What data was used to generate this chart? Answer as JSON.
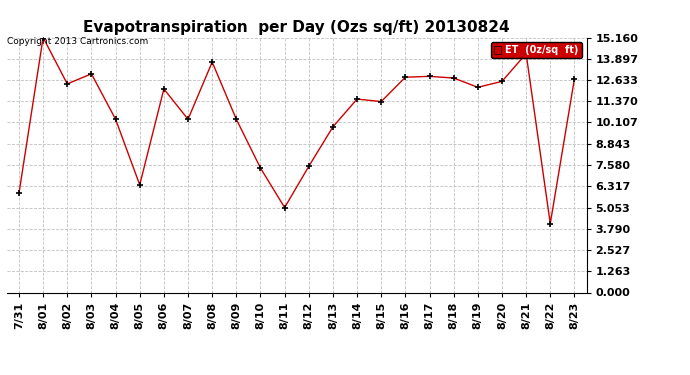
{
  "title": "Evapotranspiration  per Day (Ozs sq/ft) 20130824",
  "x_labels": [
    "7/31",
    "8/01",
    "8/02",
    "8/03",
    "8/04",
    "8/05",
    "8/06",
    "8/07",
    "8/08",
    "8/09",
    "8/10",
    "8/11",
    "8/12",
    "8/13",
    "8/14",
    "8/15",
    "8/16",
    "8/17",
    "8/18",
    "8/19",
    "8/20",
    "8/21",
    "8/22",
    "8/23"
  ],
  "y_values": [
    5.9,
    15.16,
    12.4,
    13.0,
    10.3,
    6.4,
    12.1,
    10.3,
    13.7,
    10.3,
    7.4,
    5.05,
    7.5,
    9.85,
    11.5,
    11.35,
    12.8,
    12.85,
    12.75,
    12.2,
    12.55,
    14.2,
    4.1,
    12.7
  ],
  "line_color": "#cc0000",
  "marker_color": "#000000",
  "marker_style": "+",
  "legend_label": "ET  (0z/sq  ft)",
  "legend_bg": "#cc0000",
  "legend_text_color": "#ffffff",
  "yticks": [
    0.0,
    1.263,
    2.527,
    3.79,
    5.053,
    6.317,
    7.58,
    8.843,
    10.107,
    11.37,
    12.633,
    13.897,
    15.16
  ],
  "ylim": [
    0,
    15.16
  ],
  "copyright_text": "Copyright 2013 Cartronics.com",
  "background_color": "#ffffff",
  "grid_color": "#c0c0c0",
  "title_fontsize": 11,
  "tick_fontsize": 8,
  "ytick_fontsize": 8,
  "axis_bg": "#ffffff"
}
